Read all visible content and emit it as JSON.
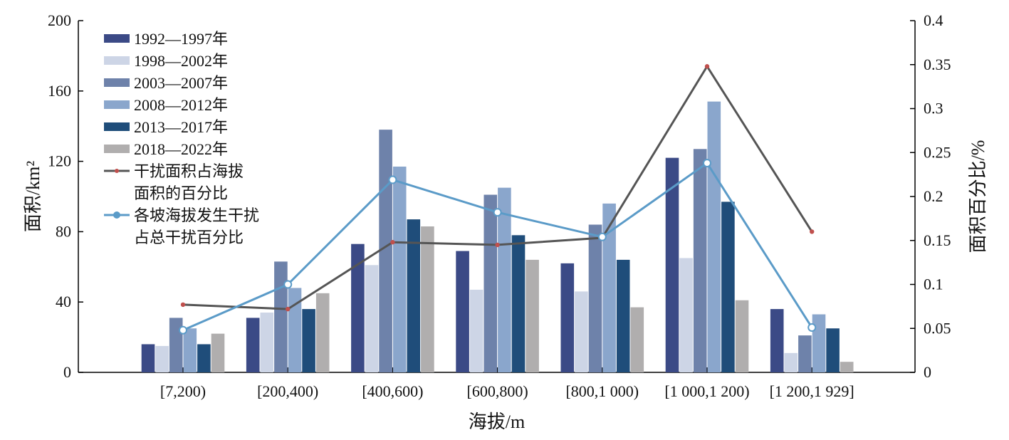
{
  "chart_data": {
    "type": "bar",
    "categories": [
      "[7,200)",
      "[200,400)",
      "[400,600)",
      "[600,800)",
      "[800,1 000)",
      "[1 000,1 200)",
      "[1 200,1 929]"
    ],
    "xlabel": "海拔/m",
    "ylabel": "面积/km²",
    "y2label": "面积百分比/%",
    "ylim": [
      0,
      200
    ],
    "y2lim": [
      0,
      0.4
    ],
    "yticks": [
      "0",
      "40",
      "80",
      "120",
      "160",
      "200"
    ],
    "y2ticks": [
      "0",
      "0.05",
      "0.1",
      "0.15",
      "0.2",
      "0.25",
      "0.3",
      "0.35",
      "0.4"
    ],
    "grid": false,
    "legend_position": "top-left",
    "series": [
      {
        "name": "1992—1997年",
        "type": "bar",
        "color": "#3b4a86",
        "values": [
          16,
          31,
          73,
          69,
          62,
          122,
          36
        ]
      },
      {
        "name": "1998—2002年",
        "type": "bar",
        "color": "#cdd5e6",
        "values": [
          15,
          34,
          61,
          47,
          46,
          65,
          11
        ]
      },
      {
        "name": "2003—2007年",
        "type": "bar",
        "color": "#6e82aa",
        "values": [
          31,
          63,
          138,
          101,
          84,
          127,
          21
        ]
      },
      {
        "name": "2008—2012年",
        "type": "bar",
        "color": "#8aa6cc",
        "values": [
          25,
          48,
          117,
          105,
          96,
          154,
          33
        ]
      },
      {
        "name": "2013—2017年",
        "type": "bar",
        "color": "#1f4d7a",
        "values": [
          16,
          36,
          87,
          78,
          64,
          97,
          25
        ]
      },
      {
        "name": "2018—2022年",
        "type": "bar",
        "color": "#b0aeae",
        "values": [
          22,
          45,
          83,
          64,
          37,
          41,
          6
        ]
      },
      {
        "name": "干扰面积占海拔\n面积的百分比",
        "type": "line",
        "axis": "right",
        "color": "#555555",
        "marker_color": "#c0504d",
        "values": [
          0.077,
          0.072,
          0.148,
          0.145,
          0.153,
          0.348,
          0.16
        ]
      },
      {
        "name": "各坡海拔发生干扰\n占总干扰百分比",
        "type": "line",
        "axis": "right",
        "color": "#5b9bc8",
        "marker_color": "#5b9bc8",
        "values": [
          0.048,
          0.1,
          0.219,
          0.182,
          0.154,
          0.238,
          0.051
        ]
      }
    ]
  }
}
